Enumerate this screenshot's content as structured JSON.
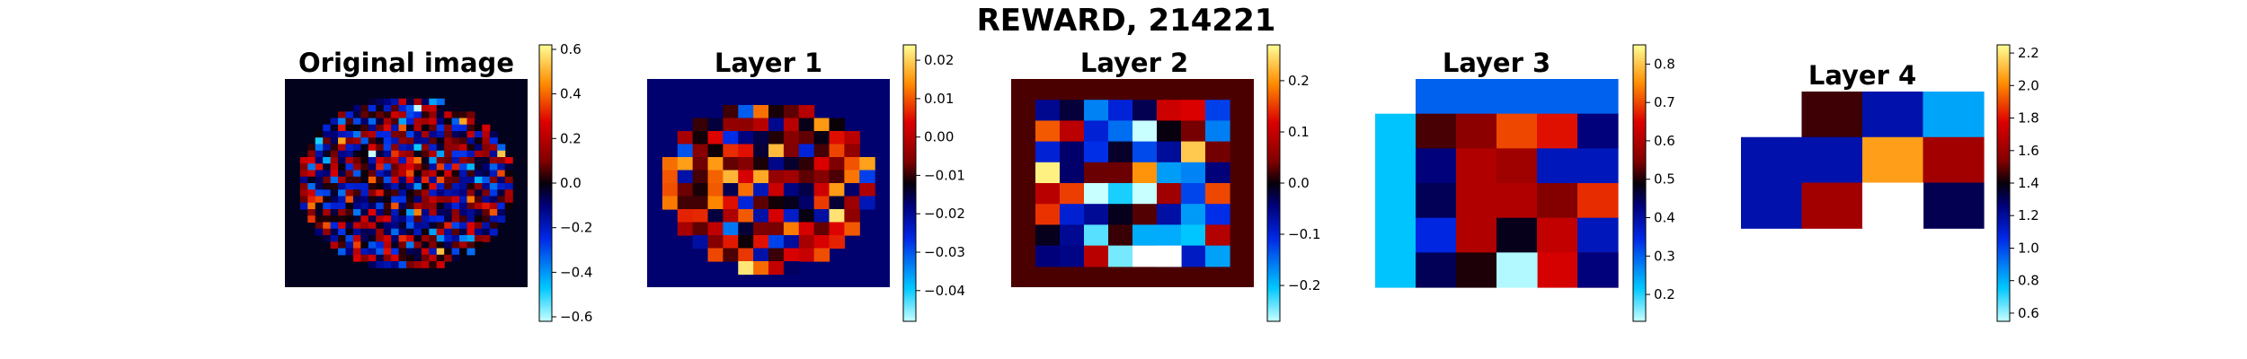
{
  "suptitle": "REWARD, 214221",
  "chart_data": [
    {
      "type": "heatmap",
      "title": "Original image",
      "rows": 32,
      "cols": 32,
      "colormap": "diverging cyan-blue-black-red-yellow",
      "background": "circular disk of noise on black",
      "clim": [
        -0.62,
        0.62
      ],
      "colorbar_ticks": [
        "0.6",
        "0.4",
        "0.2",
        "0.0",
        "−0.2",
        "−0.4",
        "−0.6"
      ],
      "colorbar_values": [
        0.6,
        0.4,
        0.2,
        0.0,
        -0.2,
        -0.4,
        -0.6
      ]
    },
    {
      "type": "heatmap",
      "title": "Layer 1",
      "rows": 16,
      "cols": 16,
      "colormap": "diverging cyan-blue-black-red-yellow",
      "background": "dark navy",
      "clim": [
        -0.048,
        0.024
      ],
      "colorbar_ticks": [
        "0.02",
        "0.01",
        "0.00",
        "−0.01",
        "−0.02",
        "−0.03",
        "−0.04"
      ],
      "colorbar_values": [
        0.02,
        0.01,
        0.0,
        -0.01,
        -0.02,
        -0.03,
        -0.04
      ]
    },
    {
      "type": "heatmap",
      "title": "Layer 2",
      "rows": 10,
      "cols": 10,
      "colormap": "diverging cyan-blue-black-red-yellow",
      "background": "dark red",
      "clim": [
        -0.27,
        0.27
      ],
      "colorbar_ticks": [
        "0.2",
        "0.1",
        "0.0",
        "−0.1",
        "−0.2"
      ],
      "colorbar_values": [
        0.2,
        0.1,
        0.0,
        -0.1,
        -0.2
      ]
    },
    {
      "type": "heatmap",
      "title": "Layer 3",
      "rows": 6,
      "cols": 6,
      "colormap": "diverging cyan-blue-black-red-yellow",
      "clim": [
        0.13,
        0.85
      ],
      "colorbar_ticks": [
        "0.8",
        "0.7",
        "0.6",
        "0.5",
        "0.4",
        "0.3",
        "0.2"
      ],
      "colorbar_values": [
        0.8,
        0.7,
        0.6,
        0.5,
        0.4,
        0.3,
        0.2
      ],
      "values": [
        [
          null,
          0.3,
          0.3,
          0.3,
          0.3,
          0.3
        ],
        [
          0.22,
          0.52,
          0.56,
          0.7,
          0.66,
          0.43
        ],
        [
          0.22,
          0.43,
          0.6,
          0.58,
          0.38,
          0.38
        ],
        [
          0.22,
          0.45,
          0.6,
          0.6,
          0.55,
          0.68
        ],
        [
          0.22,
          0.35,
          0.6,
          0.48,
          0.62,
          0.38
        ],
        [
          0.22,
          0.45,
          0.5,
          null,
          0.64,
          0.6
        ]
      ],
      "extra": [
        [
          5,
          3,
          0.14
        ],
        [
          5,
          5,
          0.43
        ]
      ]
    },
    {
      "type": "heatmap",
      "title": "Layer 4",
      "rows": 4,
      "cols": 4,
      "colormap": "diverging cyan-blue-black-red-yellow",
      "clim": [
        0.55,
        2.25
      ],
      "colorbar_ticks": [
        "2.2",
        "2.0",
        "1.8",
        "1.6",
        "1.4",
        "1.2",
        "1.0",
        "0.8",
        "0.6"
      ],
      "colorbar_values": [
        2.2,
        2.0,
        1.8,
        1.6,
        1.4,
        1.2,
        1.0,
        0.8,
        0.6
      ],
      "values": [
        [
          null,
          1.46,
          1.17,
          0.82
        ],
        [
          1.17,
          1.17,
          2.05,
          1.62
        ],
        [
          1.17,
          1.62,
          null,
          1.31
        ],
        [
          null,
          null,
          null,
          null
        ]
      ]
    }
  ]
}
